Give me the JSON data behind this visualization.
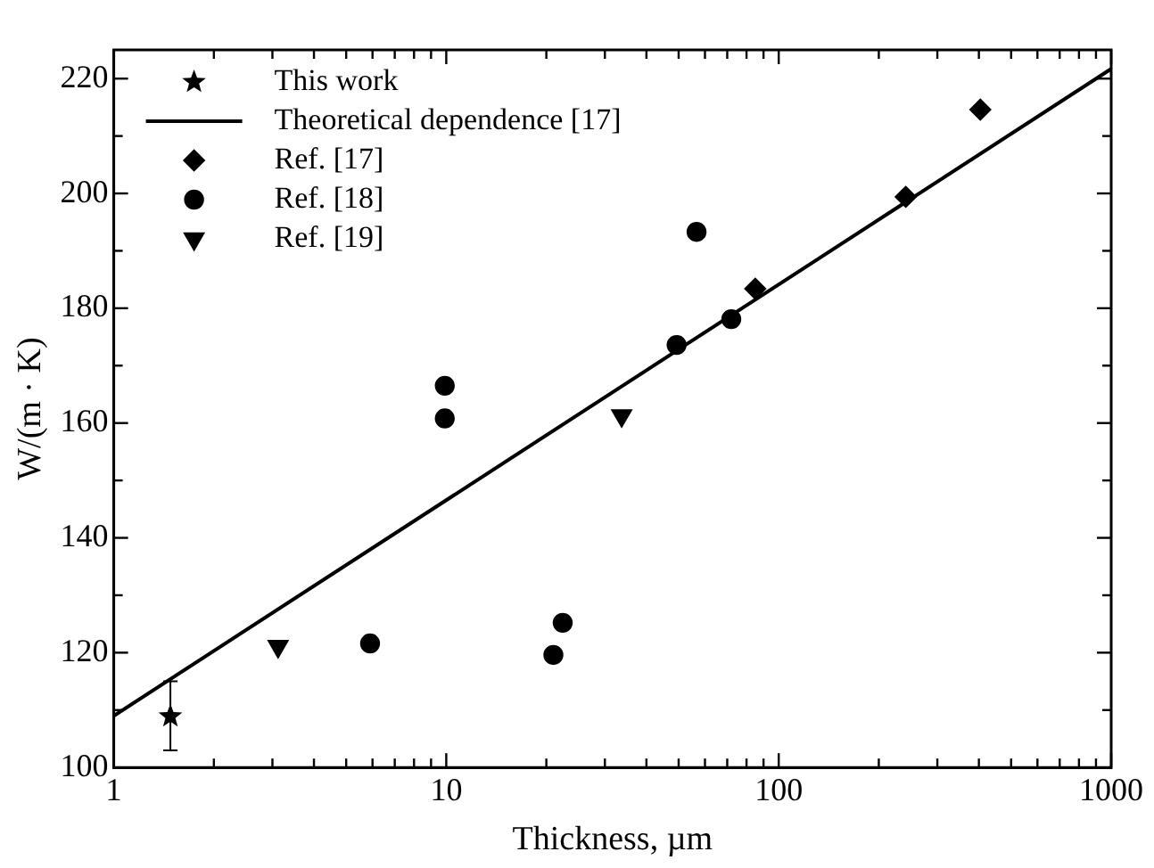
{
  "chart_data": {
    "type": "scatter",
    "xlabel": "Thickness, µm",
    "ylabel": "W/(m · K)",
    "log": "x",
    "xlim": [
      1,
      1000
    ],
    "ylim": [
      100,
      225
    ],
    "xticks": [
      1,
      {
        "value": 2,
        "label": null
      },
      {
        "value": 3,
        "label": null
      },
      {
        "value": 4,
        "label": null
      },
      {
        "value": 5,
        "label": null
      },
      {
        "value": 6,
        "label": null
      },
      {
        "value": 7,
        "label": null
      },
      {
        "value": 8,
        "label": null
      },
      {
        "value": 9,
        "label": null
      },
      10,
      {
        "value": 20,
        "label": null
      },
      {
        "value": 30,
        "label": null
      },
      {
        "value": 40,
        "label": null
      },
      {
        "value": 50,
        "label": null
      },
      {
        "value": 60,
        "label": null
      },
      {
        "value": 70,
        "label": null
      },
      {
        "value": 80,
        "label": null
      },
      {
        "value": 90,
        "label": null
      },
      100,
      {
        "value": 200,
        "label": null
      },
      {
        "value": 300,
        "label": null
      },
      {
        "value": 400,
        "label": null
      },
      {
        "value": 500,
        "label": null
      },
      {
        "value": 600,
        "label": null
      },
      {
        "value": 700,
        "label": null
      },
      {
        "value": 800,
        "label": null
      },
      {
        "value": 900,
        "label": null
      },
      1000
    ],
    "yticks": [
      100,
      {
        "value": 110,
        "label": null
      },
      120,
      {
        "value": 130,
        "label": null
      },
      140,
      {
        "value": 150,
        "label": null
      },
      160,
      {
        "value": 170,
        "label": null
      },
      180,
      {
        "value": 190,
        "label": null
      },
      200,
      {
        "value": 210,
        "label": null
      },
      220
    ],
    "grid": false,
    "legend": "top left",
    "series": [
      {
        "name": "This work",
        "marker": "star",
        "color": "#000000",
        "x": [
          1.48
        ],
        "values": [
          108.9
        ],
        "errors": [
          [
            103,
            115
          ]
        ]
      },
      {
        "name": "Theoretical dependence [17]",
        "type": "line",
        "marker": "none",
        "line_style": "solid",
        "color": "#000000",
        "x": [
          1,
          1000
        ],
        "values": [
          109,
          221.7
        ]
      },
      {
        "name": "Ref. [17]",
        "marker": "diamond",
        "color": "#000000",
        "x": [
          85,
          241,
          404
        ],
        "values": [
          183.4,
          199.4,
          214.6
        ]
      },
      {
        "name": "Ref. [18]",
        "marker": "circle",
        "color": "#000000",
        "x": [
          5.9,
          9.9,
          9.9,
          21,
          22.4,
          49.3,
          56.6,
          72
        ],
        "values": [
          121.6,
          166.5,
          160.8,
          119.6,
          125.2,
          173.6,
          193.3,
          178.1
        ]
      },
      {
        "name": "Ref. [19]",
        "marker": "triangle-down",
        "color": "#000000",
        "x": [
          3.12,
          33.7
        ],
        "values": [
          121.1,
          161.3
        ]
      }
    ]
  }
}
